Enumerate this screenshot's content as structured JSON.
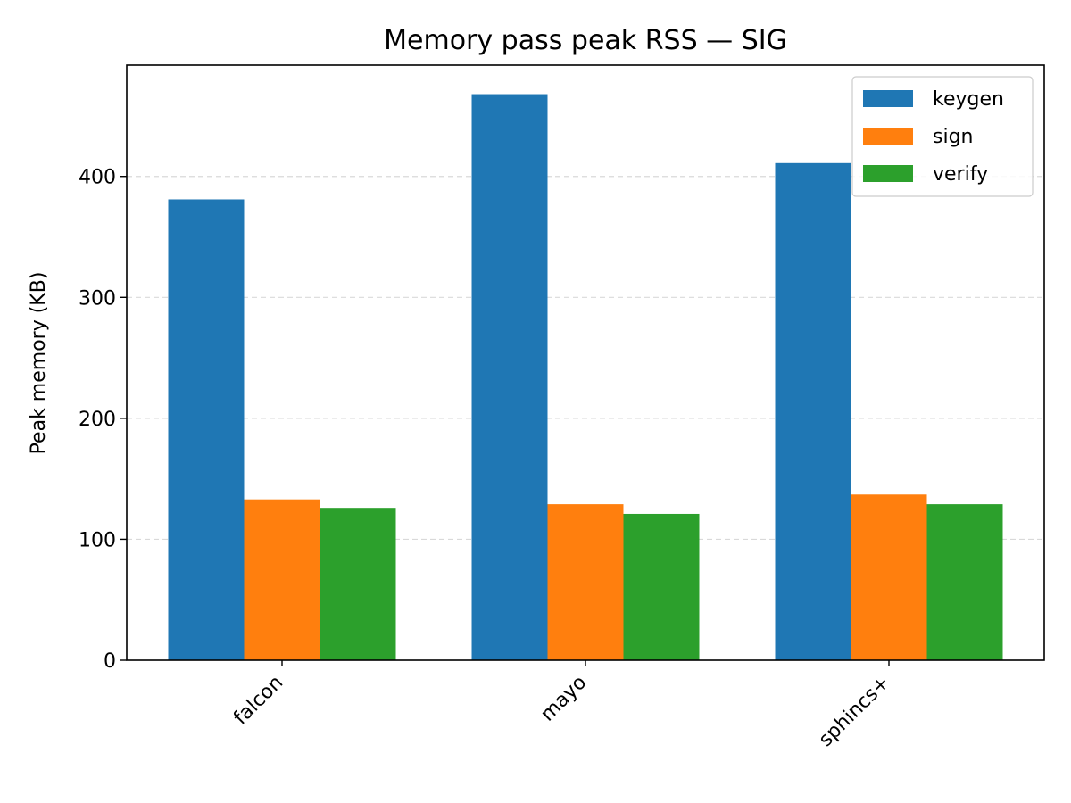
{
  "chart_data": {
    "type": "bar",
    "title": "Memory pass peak RSS — SIG",
    "xlabel": "",
    "ylabel": "Peak memory (KB)",
    "categories": [
      "falcon",
      "mayo",
      "sphincs+"
    ],
    "series": [
      {
        "name": "keygen",
        "color": "#1f77b4",
        "values": [
          381,
          468,
          411
        ]
      },
      {
        "name": "sign",
        "color": "#ff7f0e",
        "values": [
          133,
          129,
          137
        ]
      },
      {
        "name": "verify",
        "color": "#2ca02c",
        "values": [
          126,
          121,
          129
        ]
      }
    ],
    "ylim": [
      0,
      492
    ],
    "yticks": [
      0,
      100,
      200,
      300,
      400
    ],
    "grid": "y-dashed",
    "legend_position": "top-right"
  }
}
